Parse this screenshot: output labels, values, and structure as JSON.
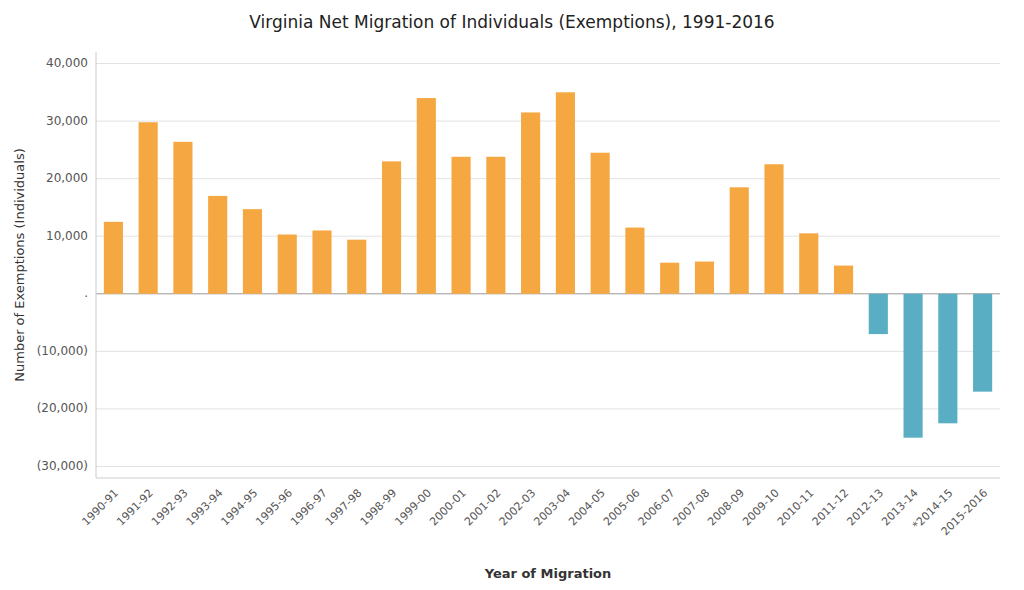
{
  "chart_data": {
    "type": "bar",
    "title": "Virginia Net Migration of Individuals (Exemptions), 1991-2016",
    "x_label": "Year of Migration",
    "y_label": "Number of Exemptions (Individuals)",
    "categories": [
      "1990-91",
      "1991-92",
      "1992-93",
      "1993-94",
      "1994-95",
      "1995-96",
      "1996-97",
      "1997-98",
      "1998-99",
      "1999-00",
      "2000-01",
      "2001-02",
      "2002-03",
      "2003-04",
      "2004-05",
      "2005-06",
      "2006-07",
      "2007-08",
      "2008-09",
      "2009-10",
      "2010-11",
      "2011-12",
      "2012-13",
      "2013-14",
      "*2014-15",
      "2015-2016"
    ],
    "values": [
      12500,
      29800,
      26400,
      17000,
      14700,
      10300,
      11000,
      9400,
      23000,
      34000,
      23800,
      23800,
      31500,
      35000,
      24500,
      11500,
      5400,
      5600,
      18500,
      22500,
      10500,
      4900,
      -7000,
      -25000,
      -22500,
      -17000
    ],
    "colors": [
      "#f5a742",
      "#f5a742",
      "#f5a742",
      "#f5a742",
      "#f5a742",
      "#f5a742",
      "#f5a742",
      "#f5a742",
      "#f5a742",
      "#f5a742",
      "#f5a742",
      "#f5a742",
      "#f5a742",
      "#f5a742",
      "#f5a742",
      "#f5a742",
      "#f5a742",
      "#f5a742",
      "#f5a742",
      "#f5a742",
      "#f5a742",
      "#f5a742",
      "#5aaec4",
      "#5aaec4",
      "#5aaec4",
      "#5aaec4"
    ],
    "ylim": [
      -32000,
      42000
    ],
    "yticks": [
      {
        "value": -30000,
        "label": "(30,000)"
      },
      {
        "value": -20000,
        "label": "(20,000)"
      },
      {
        "value": -10000,
        "label": "(10,000)"
      },
      {
        "value": 0,
        "label": "."
      },
      {
        "value": 10000,
        "label": "10,000"
      },
      {
        "value": 20000,
        "label": "20,000"
      },
      {
        "value": 30000,
        "label": "30,000"
      },
      {
        "value": 40000,
        "label": "40,000"
      }
    ],
    "grid": true
  }
}
